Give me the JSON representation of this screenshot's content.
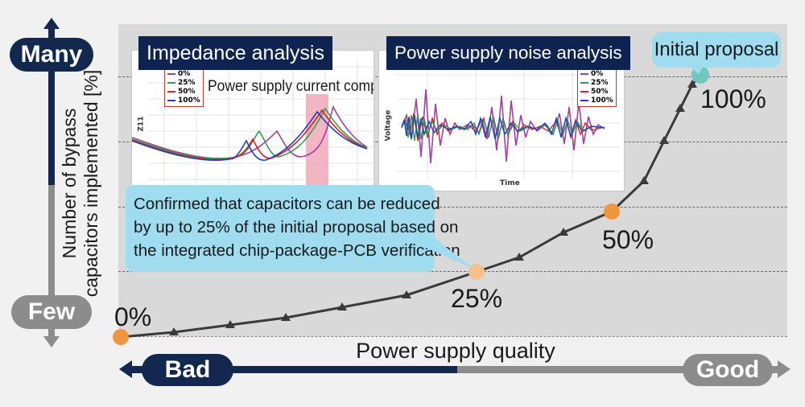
{
  "axes": {
    "y_title_line1": "Number of bypass",
    "y_title_line2": "capacitors implemented [%]",
    "y_top_label": "Many",
    "y_bottom_label": "Few",
    "x_title": "Power supply quality",
    "x_left_label": "Bad",
    "x_right_label": "Good"
  },
  "points": {
    "p0": "0%",
    "p25": "25%",
    "p50": "50%",
    "p100": "100%"
  },
  "insets": {
    "impedance": {
      "title": "Impedance analysis",
      "annotation": "Power supply current component",
      "y_label": "Z11",
      "legend": [
        "0%",
        "25%",
        "50%",
        "100%"
      ]
    },
    "noise": {
      "title": "Power supply noise analysis",
      "y_label": "Voltage",
      "x_label": "Time",
      "legend": [
        "0%",
        "25%",
        "50%",
        "100%"
      ]
    }
  },
  "callouts": {
    "confirmed_line1": "Confirmed that capacitors can be reduced",
    "confirmed_line2": "by up to 25% of the initial proposal based on",
    "confirmed_line3": "the integrated chip-package-PCB verification",
    "initial_proposal": "Initial proposal"
  },
  "colors": {
    "navy": "#13284f",
    "gray": "#8c8c8c",
    "curve": "#3a3a3a",
    "point_0": "#f0963c",
    "point_25": "#f7c08a",
    "point_50": "#f0963c",
    "point_100": "#6fc7c0",
    "callout": "#9fdcf0",
    "series_0": "#a040a0",
    "series_25": "#2e9e4a",
    "series_50": "#e02020",
    "series_100": "#2040c0"
  }
}
